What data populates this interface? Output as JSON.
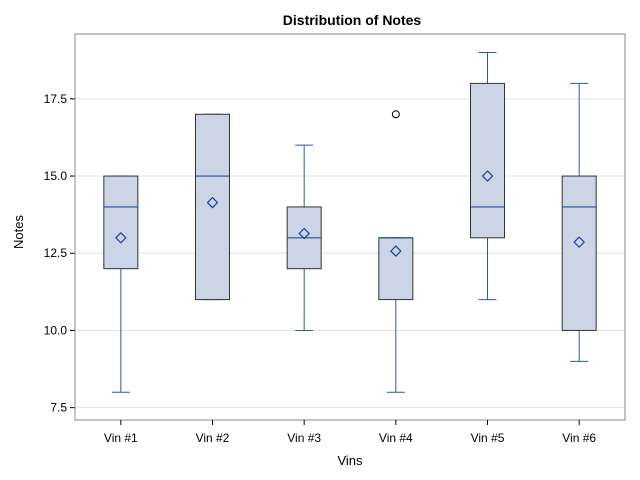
{
  "chart_data": {
    "type": "box",
    "title": "Distribution of Notes",
    "xlabel": "Vins",
    "ylabel": "Notes",
    "ylim": [
      7.1,
      19.6
    ],
    "yticks": [
      "7.5",
      "10.0",
      "12.5",
      "15.0",
      "17.5"
    ],
    "categories": [
      "Vin #1",
      "Vin #2",
      "Vin #3",
      "Vin #4",
      "Vin #5",
      "Vin #6"
    ],
    "boxes": [
      {
        "min": 8,
        "q1": 12,
        "median": 14,
        "q3": 15,
        "max": 15,
        "mean": 13.0,
        "outliers": []
      },
      {
        "min": 11,
        "q1": 11,
        "median": 15,
        "q3": 17,
        "max": 17,
        "mean": 14.14,
        "outliers": []
      },
      {
        "min": 10,
        "q1": 12,
        "median": 13,
        "q3": 14,
        "max": 16,
        "mean": 13.14,
        "outliers": []
      },
      {
        "min": 8,
        "q1": 11,
        "median": 13,
        "q3": 13,
        "max": 13,
        "mean": 12.57,
        "outliers": [
          17
        ]
      },
      {
        "min": 11,
        "q1": 13,
        "median": 14,
        "q3": 18,
        "max": 19,
        "mean": 15.0,
        "outliers": []
      },
      {
        "min": 9,
        "q1": 10,
        "median": 14,
        "q3": 15,
        "max": 18,
        "mean": 12.86,
        "outliers": []
      }
    ],
    "grid": "horizontal",
    "colors": {
      "box_fill": "#cbd5e5",
      "box_stroke": "#333333",
      "whisker": "#2a5a9e",
      "median": "#1f4e9e",
      "mean_marker": "#1f3fa0",
      "outlier": "#000000",
      "grid": "#e3e3e3",
      "frame": "#8a8a8a"
    }
  }
}
